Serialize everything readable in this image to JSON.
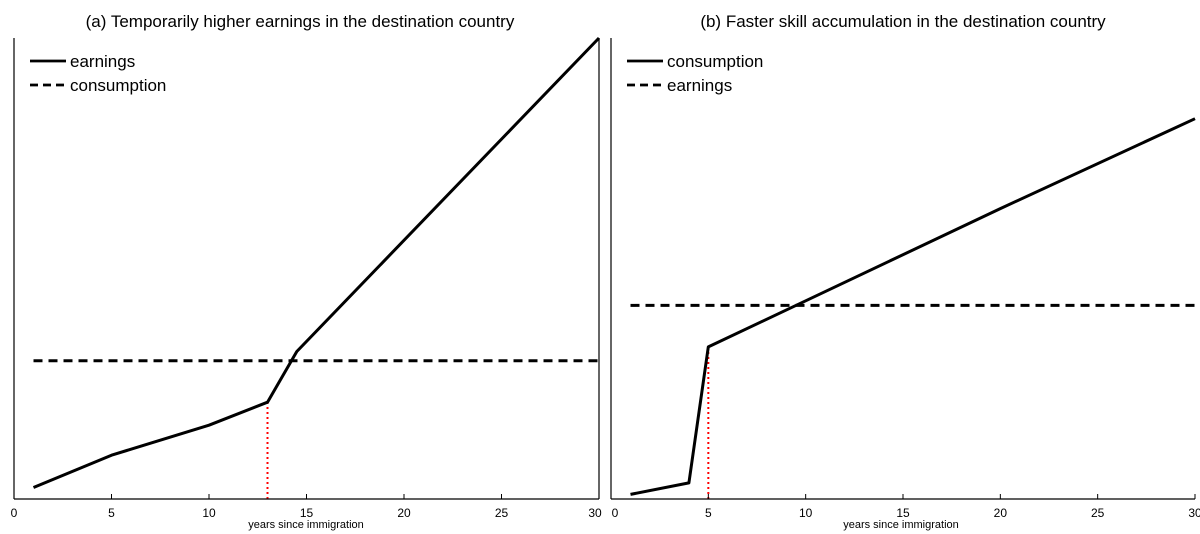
{
  "chart_data": [
    {
      "type": "line",
      "title": "(a) Temporarily higher earnings in the destination country",
      "xlabel": "years since immigration",
      "ylabel": "",
      "xlim": [
        0,
        30
      ],
      "ylim": [
        0,
        10
      ],
      "xticks": [
        0,
        5,
        10,
        15,
        20,
        25,
        30
      ],
      "yticks_shown": false,
      "grid": false,
      "legend_position": "top-left",
      "series": [
        {
          "name": "earnings",
          "style": "solid",
          "color": "#000000",
          "points": [
            [
              1,
              0.25
            ],
            [
              5,
              0.95
            ],
            [
              10,
              1.6
            ],
            [
              13,
              2.1
            ],
            [
              14.5,
              3.2
            ],
            [
              30,
              10.0
            ]
          ]
        },
        {
          "name": "consumption",
          "style": "dashed",
          "color": "#000000",
          "points": [
            [
              1,
              3.0
            ],
            [
              30,
              3.0
            ]
          ]
        }
      ],
      "annotations": [
        {
          "type": "vline",
          "x": 13,
          "y_from": 0,
          "y_to": 2.1,
          "style": "dotted",
          "color": "#ff0000"
        }
      ]
    },
    {
      "type": "line",
      "title": "(b) Faster skill accumulation in the destination country",
      "xlabel": "years since immigration",
      "ylabel": "",
      "xlim": [
        0,
        30
      ],
      "ylim": [
        0,
        10
      ],
      "xticks": [
        0,
        5,
        10,
        15,
        20,
        25,
        30
      ],
      "yticks_shown": false,
      "grid": false,
      "legend_position": "top-left",
      "series": [
        {
          "name": "consumption",
          "style": "solid",
          "color": "#000000",
          "points": [
            [
              1,
              0.1
            ],
            [
              4,
              0.35
            ],
            [
              5,
              3.3
            ],
            [
              10,
              4.3
            ],
            [
              20,
              6.3
            ],
            [
              30,
              8.25
            ]
          ]
        },
        {
          "name": "earnings",
          "style": "dashed",
          "color": "#000000",
          "points": [
            [
              1,
              4.2
            ],
            [
              30,
              4.2
            ]
          ]
        }
      ],
      "annotations": [
        {
          "type": "vline",
          "x": 5,
          "y_from": 0,
          "y_to": 3.3,
          "style": "dotted",
          "color": "#ff0000"
        }
      ]
    }
  ]
}
